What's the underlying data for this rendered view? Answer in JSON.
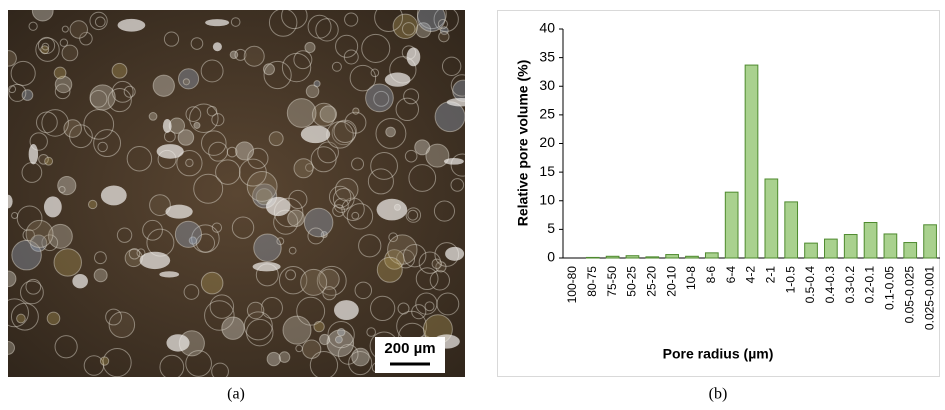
{
  "image": {
    "scale_bar": "200 µm",
    "caption": "(a)"
  },
  "chart_data": {
    "type": "bar",
    "caption": "(b)",
    "x_label": "Pore radius (µm)",
    "y_label": "Relative pore  volume (%)",
    "categories": [
      "100-80",
      "80-75",
      "75-50",
      "50-25",
      "25-20",
      "20-10",
      "10-8",
      "8-6",
      "6-4",
      "4-2",
      "2-1",
      "1-0.5",
      "0.5-0.4",
      "0.4-0.3",
      "0.3-0.2",
      "0.2-0.1",
      "0.1-0.05",
      "0.05-0.025",
      "0.025-0.001"
    ],
    "values": [
      0,
      0.1,
      0.3,
      0.4,
      0.2,
      0.6,
      0.3,
      0.9,
      11.5,
      33.7,
      13.8,
      9.8,
      2.6,
      3.3,
      4.1,
      6.2,
      4.2,
      2.7,
      5.8
    ],
    "color": "#a9d18e",
    "edge_color": "#4e8a2e",
    "ylim": [
      0,
      40
    ],
    "yticks": [
      0,
      5,
      10,
      15,
      20,
      25,
      30,
      35,
      40
    ]
  }
}
